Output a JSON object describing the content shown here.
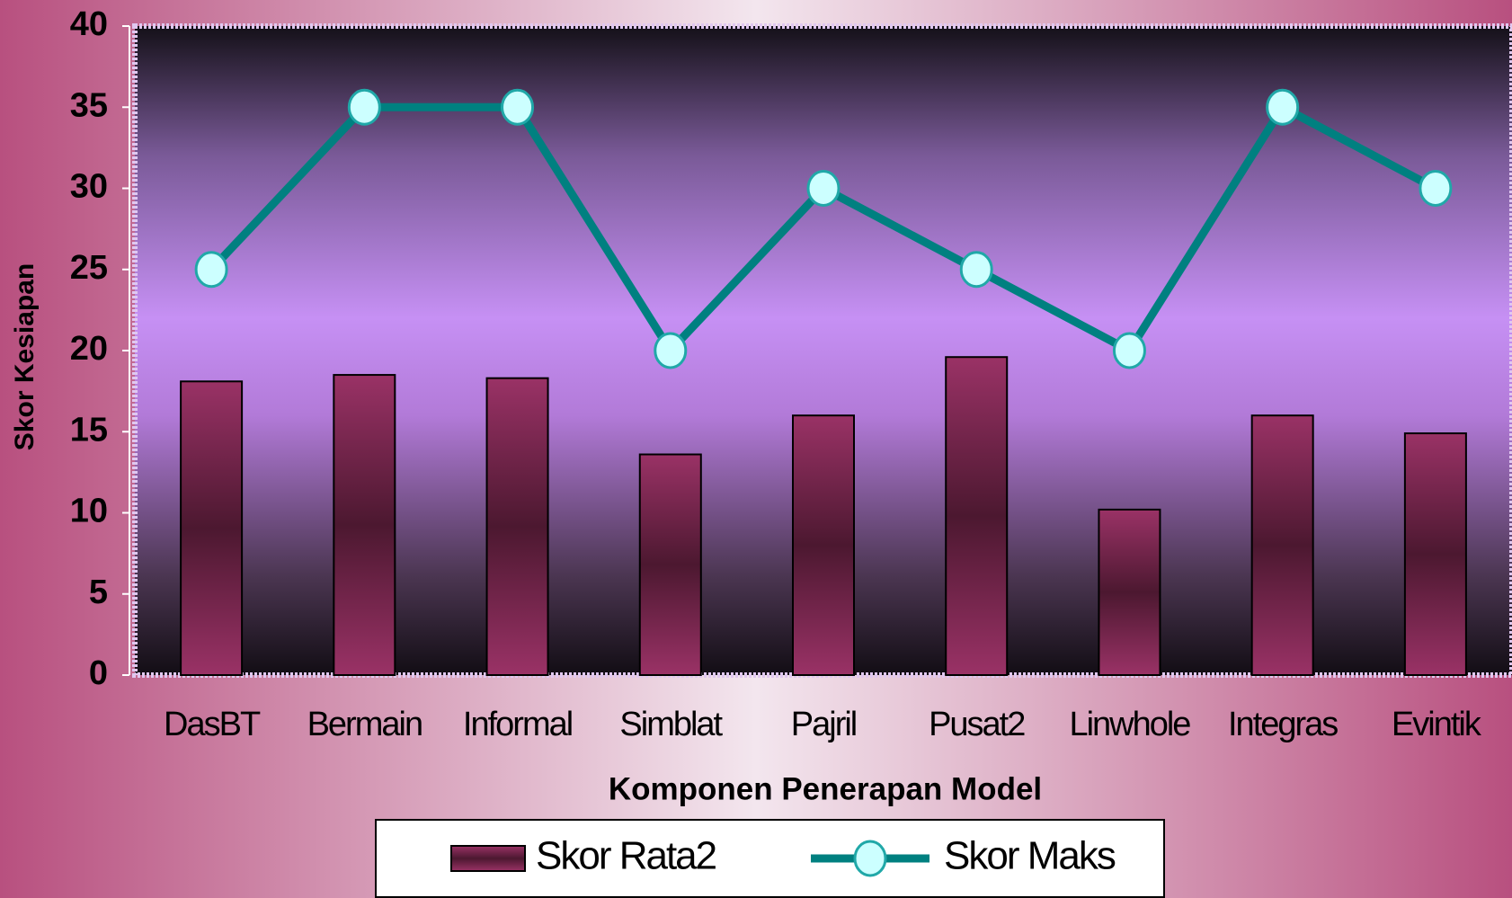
{
  "chart_data": {
    "type": "bar",
    "x_label": "Komponen Penerapan Model",
    "y_label": "Skor Kesiapan",
    "categories": [
      "DasBT",
      "Bermain",
      "Informal",
      "Simblat",
      "Pajril",
      "Pusat2",
      "Linwhole",
      "Integras",
      "Evintik"
    ],
    "series": [
      {
        "name": "Skor Rata2",
        "type": "bar",
        "color": "#8e2b5c",
        "values": [
          18.1,
          18.5,
          18.3,
          13.6,
          16,
          19.6,
          10.2,
          16,
          14.9
        ]
      },
      {
        "name": "Skor Maks",
        "type": "line",
        "color": "#008080",
        "values": [
          25,
          35,
          35,
          20,
          30,
          25,
          20,
          35,
          30
        ]
      }
    ],
    "ylim": [
      0,
      40
    ],
    "yticks": [
      0,
      5,
      10,
      15,
      20,
      25,
      30,
      35,
      40
    ]
  }
}
